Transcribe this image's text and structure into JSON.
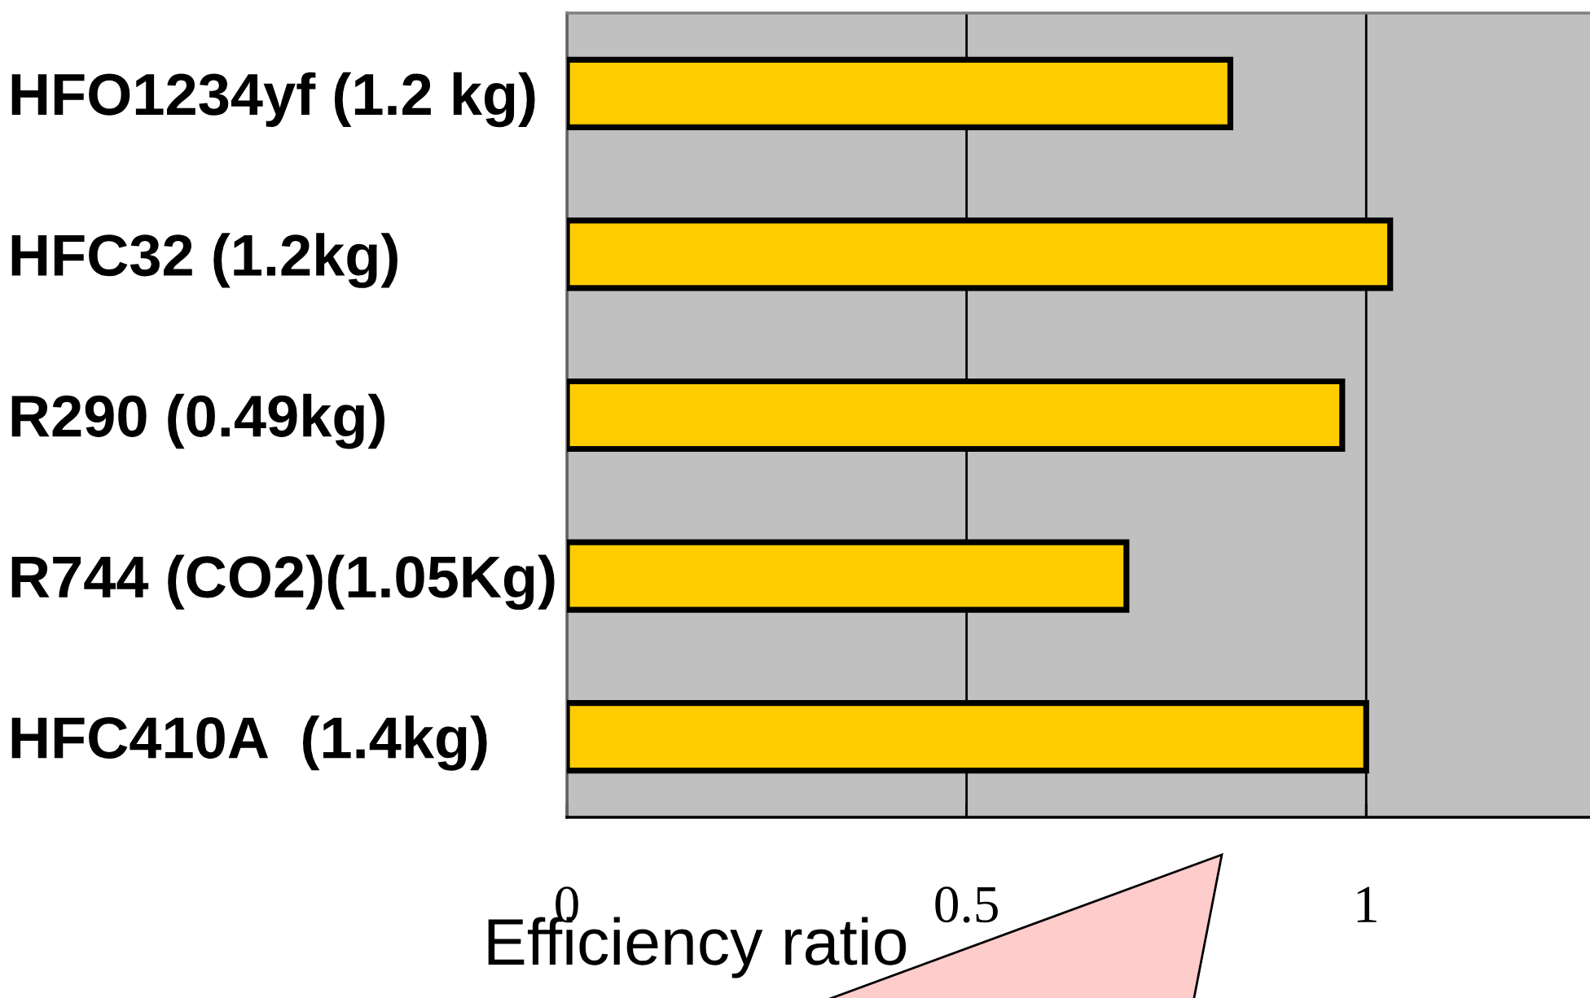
{
  "chart_data": {
    "type": "bar",
    "orientation": "horizontal",
    "xlabel": "Efficiency ratio",
    "categories": [
      "HFO1234yf (1.2 kg)",
      "HFC32 (1.2kg)",
      "R290 (0.49kg)",
      "R744 (CO2)(1.05Kg)",
      "HFC410A  (1.4kg)"
    ],
    "values": [
      0.83,
      1.03,
      0.97,
      0.7,
      1.0
    ],
    "color": "#ffcc00",
    "xlim": [
      0,
      1.28
    ],
    "xticks": [
      0,
      0.5,
      1
    ],
    "grid": "x"
  }
}
